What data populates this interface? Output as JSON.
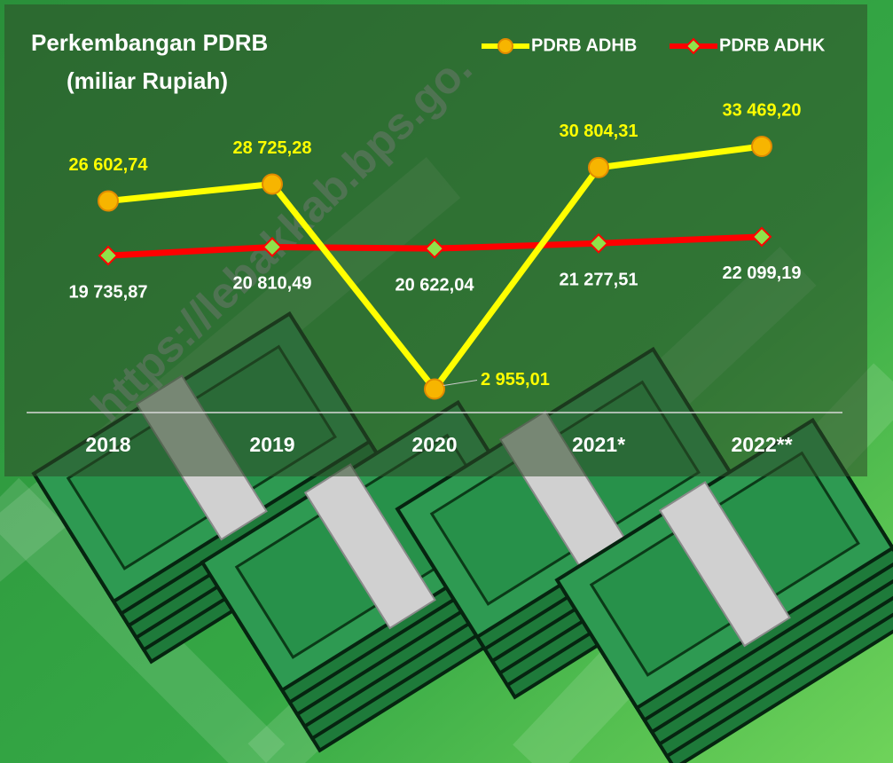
{
  "chart_data": {
    "type": "line",
    "title": "Perkembangan PDRB",
    "subtitle": "(miliar Rupiah)",
    "watermark": "https://lebakkab.bps.go.",
    "categories": [
      "2018",
      "2019",
      "2020",
      "2021*",
      "2022**"
    ],
    "series": [
      {
        "name": "PDRB ADHB",
        "color": "#ffff00",
        "marker_color": "#f7b500",
        "marker": "circle",
        "values": [
          26602.74,
          28725.28,
          2955.01,
          30804.31,
          33469.2
        ],
        "value_labels": [
          "26 602,74",
          "28 725,28",
          "2 955,01",
          "30 804,31",
          "33 469,20"
        ]
      },
      {
        "name": "PDRB ADHK",
        "color": "#ff0000",
        "marker_color": "#8fe24a",
        "marker": "diamond",
        "values": [
          19735.87,
          20810.49,
          20622.04,
          21277.51,
          22099.19
        ],
        "value_labels": [
          "19 735,87",
          "20 810,49",
          "20 622,04",
          "21 277,51",
          "22 099,19"
        ]
      }
    ],
    "legend": "top-right",
    "grid": false
  }
}
